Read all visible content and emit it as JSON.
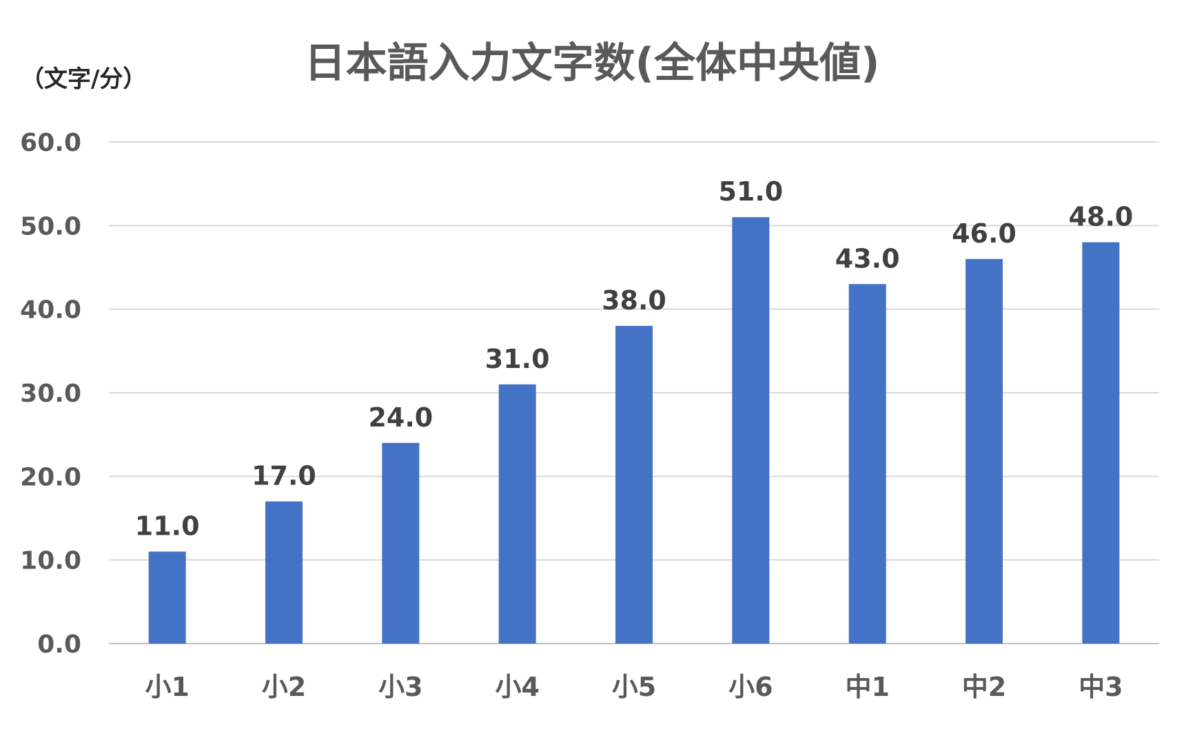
{
  "chart_data": {
    "type": "bar",
    "title": "日本語入力文字数(全体中央値)",
    "ylabel": "（文字/分）",
    "xlabel": "",
    "categories": [
      "小1",
      "小2",
      "小3",
      "小4",
      "小5",
      "小6",
      "中1",
      "中2",
      "中3"
    ],
    "values": [
      11.0,
      17.0,
      24.0,
      31.0,
      38.0,
      51.0,
      43.0,
      46.0,
      48.0
    ],
    "data_labels": [
      "11.0",
      "17.0",
      "24.0",
      "31.0",
      "38.0",
      "51.0",
      "43.0",
      "46.0",
      "48.0"
    ],
    "ylim": [
      0,
      60
    ],
    "yticks": [
      "0.0",
      "10.0",
      "20.0",
      "30.0",
      "40.0",
      "50.0",
      "60.0"
    ],
    "grid": true,
    "legend": "none",
    "colors": {
      "bar": "#4472C4",
      "grid": "#D9D9D9",
      "title": "#595959",
      "ticks": "#595959",
      "labels": "#404040"
    }
  }
}
